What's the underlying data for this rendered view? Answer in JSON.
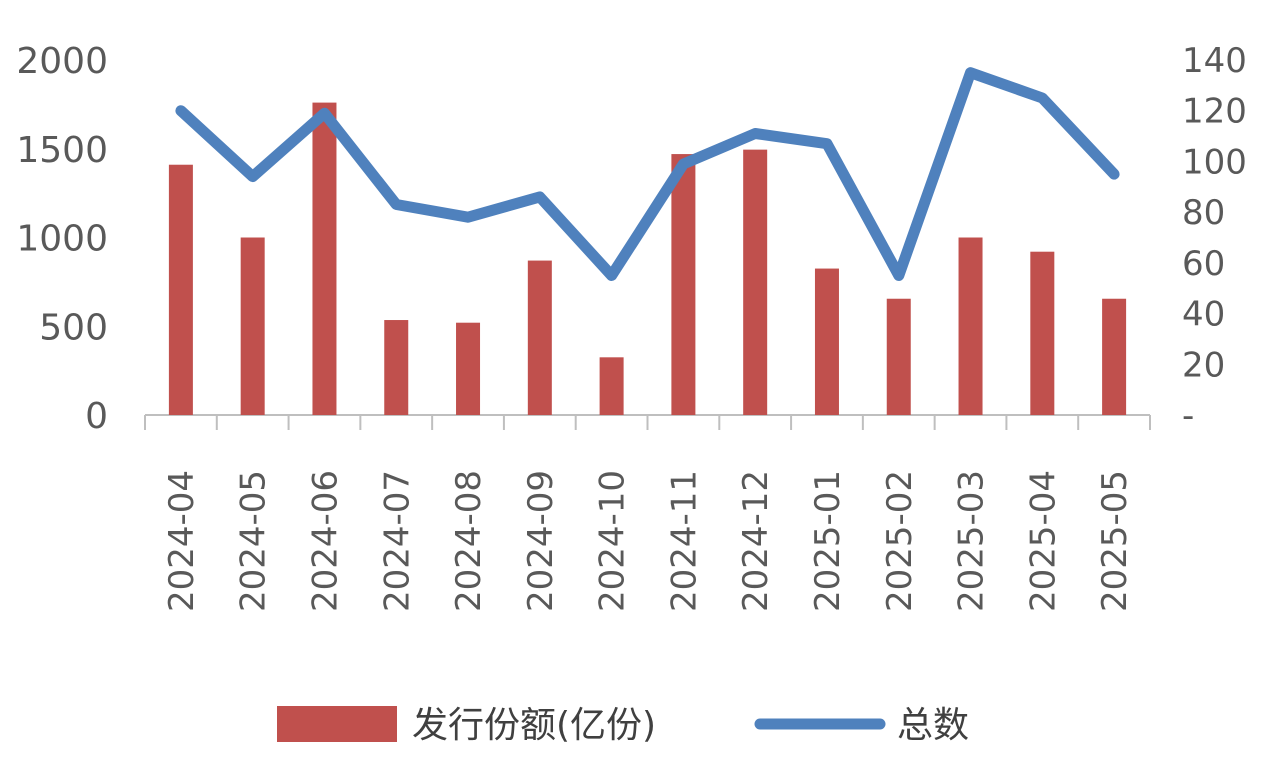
{
  "chart_data": {
    "type": "bar",
    "categories": [
      "2024-04",
      "2024-05",
      "2024-06",
      "2024-07",
      "2024-08",
      "2024-09",
      "2024-10",
      "2024-11",
      "2024-12",
      "2025-01",
      "2025-02",
      "2025-03",
      "2025-04",
      "2025-05"
    ],
    "series": [
      {
        "name": "发行份额(亿份)",
        "type": "bar",
        "axis": "left",
        "color": "#c0504d",
        "values": [
          1410,
          1000,
          1760,
          535,
          520,
          870,
          325,
          1470,
          1495,
          825,
          655,
          1000,
          920,
          655
        ]
      },
      {
        "name": "总数",
        "type": "line",
        "axis": "right",
        "color": "#4f81bd",
        "values": [
          120,
          94,
          119,
          83,
          78,
          86,
          55,
          99,
          111,
          107,
          55,
          135,
          125,
          95
        ]
      }
    ],
    "left_axis": {
      "ylim": [
        0,
        2000
      ],
      "ticks": [
        "0",
        "500",
        "1000",
        "1500",
        "2000"
      ]
    },
    "right_axis": {
      "ylim": [
        0,
        140
      ],
      "ticks": [
        "-",
        "20",
        "40",
        "60",
        "80",
        "100",
        "120",
        "140"
      ]
    },
    "grid": false,
    "legend": "bottom"
  }
}
